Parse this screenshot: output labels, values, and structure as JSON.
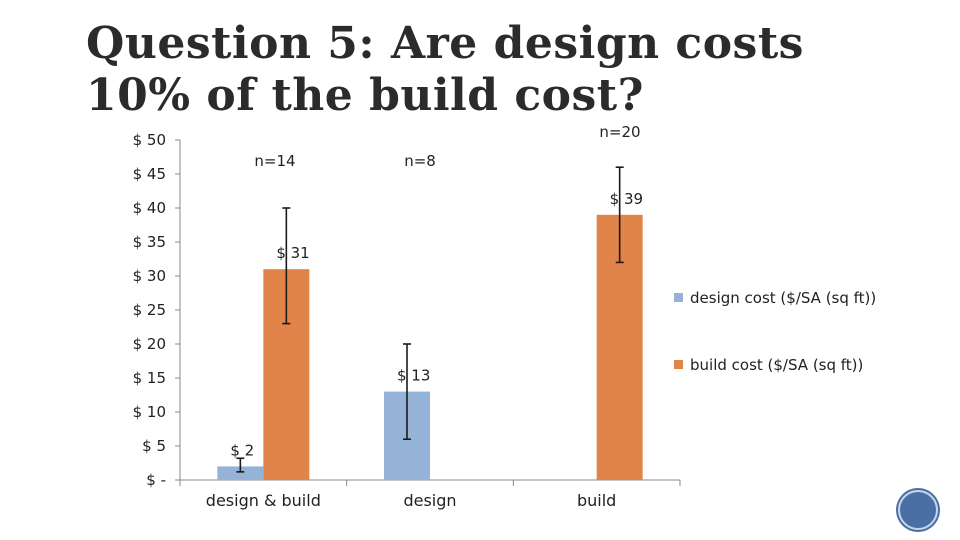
{
  "slide": {
    "title": "Question 5: Are design costs 10% of the build cost?"
  },
  "colors": {
    "design": "#95b3d7",
    "build": "#e0844a",
    "axis": "#888888",
    "errorbar": "#1a1a1a"
  },
  "chart_data": {
    "type": "bar",
    "categories": [
      "design & build",
      "design",
      "build"
    ],
    "series": [
      {
        "name": "design cost ($/SA (sq ft))",
        "values": [
          2,
          13,
          null
        ],
        "labels": [
          "$ 2",
          "$ 13",
          ""
        ],
        "error": [
          [
            1.2,
            3.2
          ],
          [
            6,
            20
          ],
          null
        ]
      },
      {
        "name": "build cost  ($/SA (sq ft))",
        "values": [
          31,
          null,
          39
        ],
        "labels": [
          "$ 31",
          "",
          "$ 39"
        ],
        "error": [
          [
            23,
            40
          ],
          null,
          [
            32,
            46
          ]
        ]
      }
    ],
    "n_labels": [
      "n=14",
      "n=8",
      "n=20"
    ],
    "ylim": [
      0,
      50
    ],
    "yticks": [
      0,
      5,
      10,
      15,
      20,
      25,
      30,
      35,
      40,
      45,
      50
    ],
    "ytick_labels": [
      "$ -",
      "$ 5",
      "$ 10",
      "$ 15",
      "$ 20",
      "$ 25",
      "$ 30",
      "$ 35",
      "$ 40",
      "$ 45",
      "$ 50"
    ],
    "legend_position": "right",
    "grid": false
  }
}
